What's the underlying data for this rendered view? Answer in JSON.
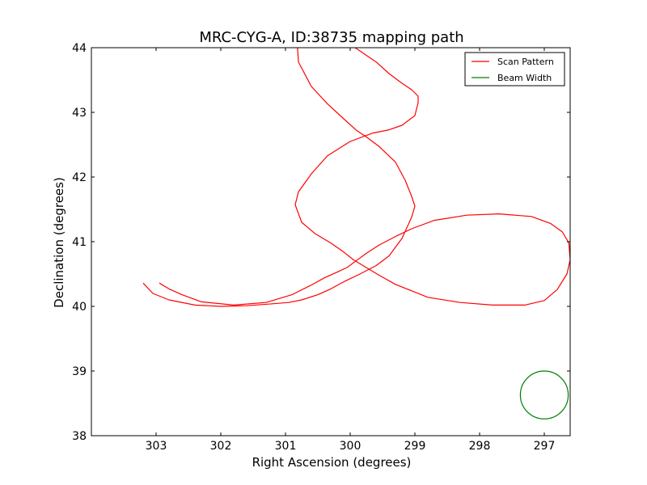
{
  "chart_data": {
    "type": "line",
    "title": "MRC-CYG-A, ID:38735 mapping path",
    "xlabel": "Right Ascension (degrees)",
    "ylabel": "Declination (degrees)",
    "xlim": [
      304.0,
      296.6
    ],
    "ylim": [
      38,
      44
    ],
    "x_inverted": true,
    "x_ticks": [
      "303",
      "302",
      "301",
      "300",
      "299",
      "298",
      "297"
    ],
    "y_ticks": [
      "38",
      "39",
      "40",
      "41",
      "42",
      "43",
      "44"
    ],
    "grid": false,
    "legend_placement": "top-right",
    "series": [
      {
        "name": "Scan Pattern",
        "color": "#ff0000",
        "x": [
          302.95,
          302.8,
          302.6,
          302.3,
          301.8,
          301.3,
          300.9,
          300.6,
          300.4,
          300.2,
          300.05,
          299.9,
          299.75,
          299.55,
          299.3,
          299.05,
          298.7,
          298.2,
          297.7,
          297.2,
          296.9,
          296.72,
          296.62,
          296.6,
          296.65,
          296.8,
          297.0,
          297.3,
          297.8,
          298.3,
          298.8,
          299.3,
          299.55,
          299.75,
          299.95,
          300.1,
          300.3,
          300.55,
          300.75,
          300.85,
          300.8,
          300.6,
          300.35,
          300.0,
          299.65,
          299.4,
          299.2,
          299.0,
          298.95,
          298.95,
          299.05,
          299.2,
          299.4,
          299.6,
          299.85,
          300.1,
          300.3,
          300.55,
          300.75,
          300.82,
          300.8,
          300.6,
          300.35,
          300.1,
          299.9,
          299.75,
          299.55,
          299.3,
          299.15,
          299.05,
          299.0,
          299.05,
          299.2,
          299.4,
          299.6,
          299.85,
          300.1,
          300.3,
          300.5,
          300.75,
          300.95,
          301.2,
          301.6,
          302.0,
          302.4,
          302.8,
          303.05,
          303.2
        ],
        "y": [
          40.36,
          40.27,
          40.18,
          40.07,
          40.02,
          40.06,
          40.18,
          40.33,
          40.44,
          40.53,
          40.6,
          40.71,
          40.82,
          40.95,
          41.08,
          41.2,
          41.33,
          41.41,
          41.43,
          41.39,
          41.28,
          41.15,
          40.98,
          40.72,
          40.5,
          40.26,
          40.09,
          40.02,
          40.02,
          40.06,
          40.14,
          40.34,
          40.48,
          40.6,
          40.72,
          40.84,
          40.98,
          41.13,
          41.3,
          41.57,
          41.77,
          42.05,
          42.33,
          42.55,
          42.68,
          42.73,
          42.8,
          42.95,
          43.15,
          43.25,
          43.35,
          43.45,
          43.6,
          43.78,
          43.95,
          44.12,
          44.22,
          44.27,
          44.25,
          44.1,
          43.78,
          43.4,
          43.13,
          42.9,
          42.72,
          42.62,
          42.47,
          42.23,
          41.95,
          41.7,
          41.55,
          41.38,
          41.05,
          40.78,
          40.63,
          40.5,
          40.38,
          40.27,
          40.18,
          40.1,
          40.06,
          40.04,
          40.01,
          40.0,
          40.02,
          40.1,
          40.2,
          40.36
        ]
      },
      {
        "name": "Beam Width",
        "color": "#008000",
        "center": [
          297.0,
          38.63
        ],
        "radius_deg": 0.37
      }
    ]
  }
}
